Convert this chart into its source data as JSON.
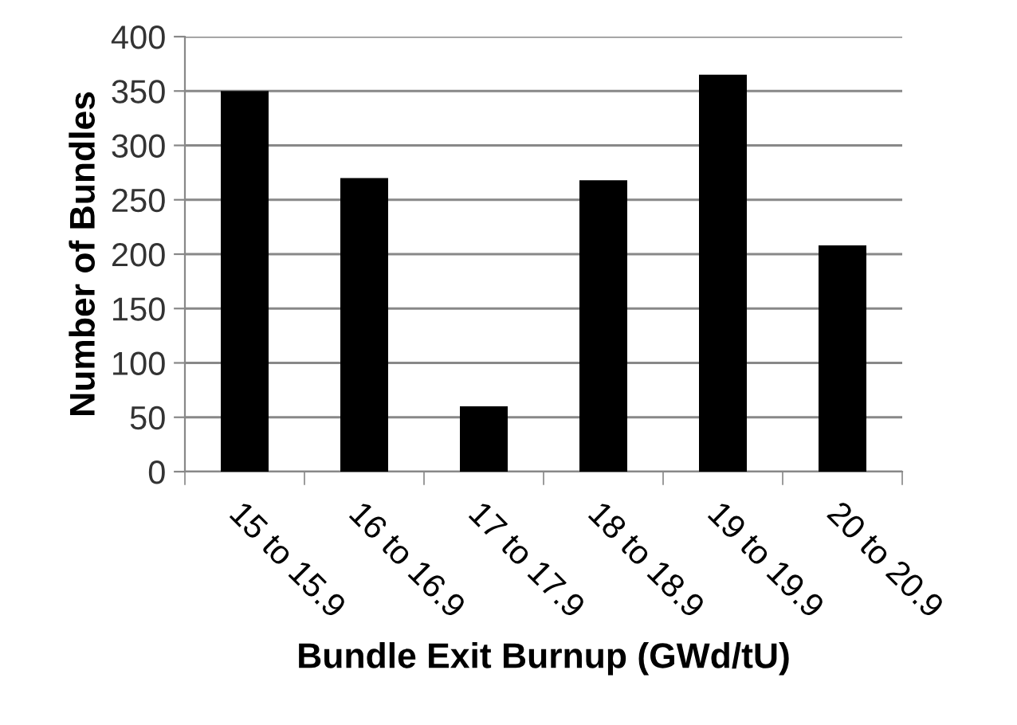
{
  "chart_data": {
    "type": "bar",
    "categories": [
      "15 to 15.9",
      "16 to 16.9",
      "17 to 17.9",
      "18 to 18.9",
      "19 to 19.9",
      "20 to 20.9"
    ],
    "values": [
      350,
      270,
      60,
      268,
      365,
      208
    ],
    "color": "#000000",
    "xlabel": "Bundle Exit Burnup (GWd/tU)",
    "ylabel": "Number of Bundles",
    "ylim": [
      0,
      400
    ],
    "yticks": [
      0,
      50,
      100,
      150,
      200,
      250,
      300,
      350,
      400
    ],
    "grid": "y",
    "legend": false
  }
}
